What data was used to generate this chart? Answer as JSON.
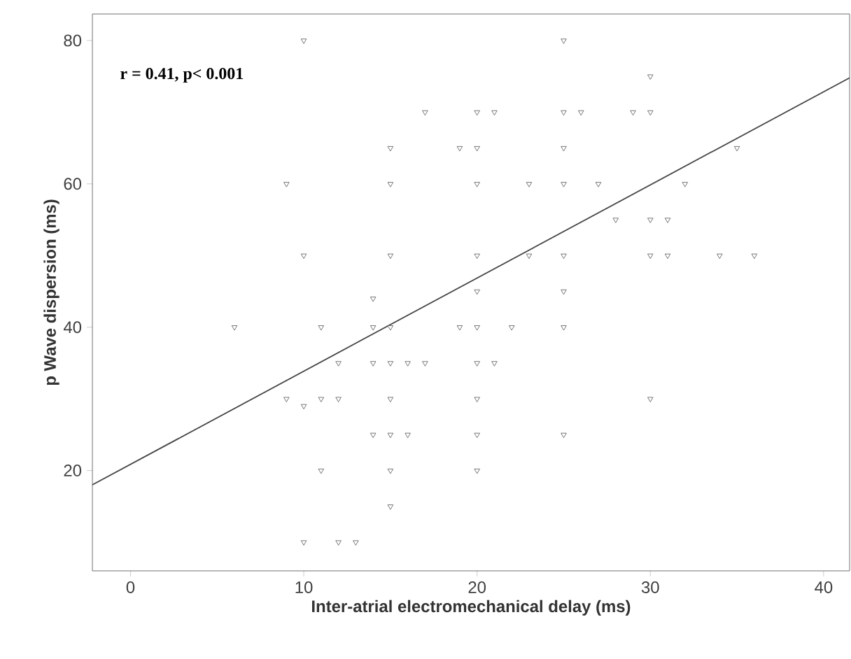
{
  "chart_data": {
    "type": "scatter",
    "xlabel": "Inter-atrial electromechanical delay (ms)",
    "ylabel": "p Wave dispersion (ms)",
    "annotations": [
      "r = 0.41, p< 0.001"
    ],
    "xlim": [
      -2.2,
      41.5
    ],
    "ylim": [
      6,
      83.7
    ],
    "xticks": [
      0,
      10,
      20,
      30,
      40
    ],
    "yticks": [
      20,
      40,
      60,
      80
    ],
    "grid": false,
    "marker": "triangle",
    "series": [
      {
        "color": "#555555",
        "x": [
          10,
          25,
          30,
          17,
          20,
          21,
          25,
          26,
          29,
          30,
          15,
          19,
          20,
          25,
          35,
          9,
          15,
          20,
          23,
          25,
          27,
          32,
          28,
          30,
          31,
          10,
          15,
          20,
          23,
          25,
          30,
          31,
          34,
          36,
          20,
          25,
          14,
          6,
          11,
          14,
          15,
          19,
          20,
          22,
          25,
          12,
          14,
          15,
          16,
          17,
          20,
          21,
          9,
          10,
          11,
          12,
          15,
          20,
          30,
          14,
          15,
          16,
          20,
          25,
          11,
          15,
          20,
          15,
          10,
          12,
          13
        ],
        "values": [
          80,
          80,
          75,
          70,
          70,
          70,
          70,
          70,
          70,
          70,
          65,
          65,
          65,
          65,
          65,
          60,
          60,
          60,
          60,
          60,
          60,
          60,
          55,
          55,
          55,
          50,
          50,
          50,
          50,
          50,
          50,
          50,
          50,
          50,
          45,
          45,
          44,
          40,
          40,
          40,
          40,
          40,
          40,
          40,
          40,
          35,
          35,
          35,
          35,
          35,
          35,
          35,
          30,
          29,
          30,
          30,
          30,
          30,
          30,
          25,
          25,
          25,
          25,
          25,
          20,
          20,
          20,
          15,
          10,
          10,
          10
        ]
      },
      {
        "type": "line",
        "color": "#444444",
        "marker": "none",
        "x": [
          -2.2,
          41.5
        ],
        "values": [
          18.0,
          74.8
        ]
      }
    ]
  }
}
